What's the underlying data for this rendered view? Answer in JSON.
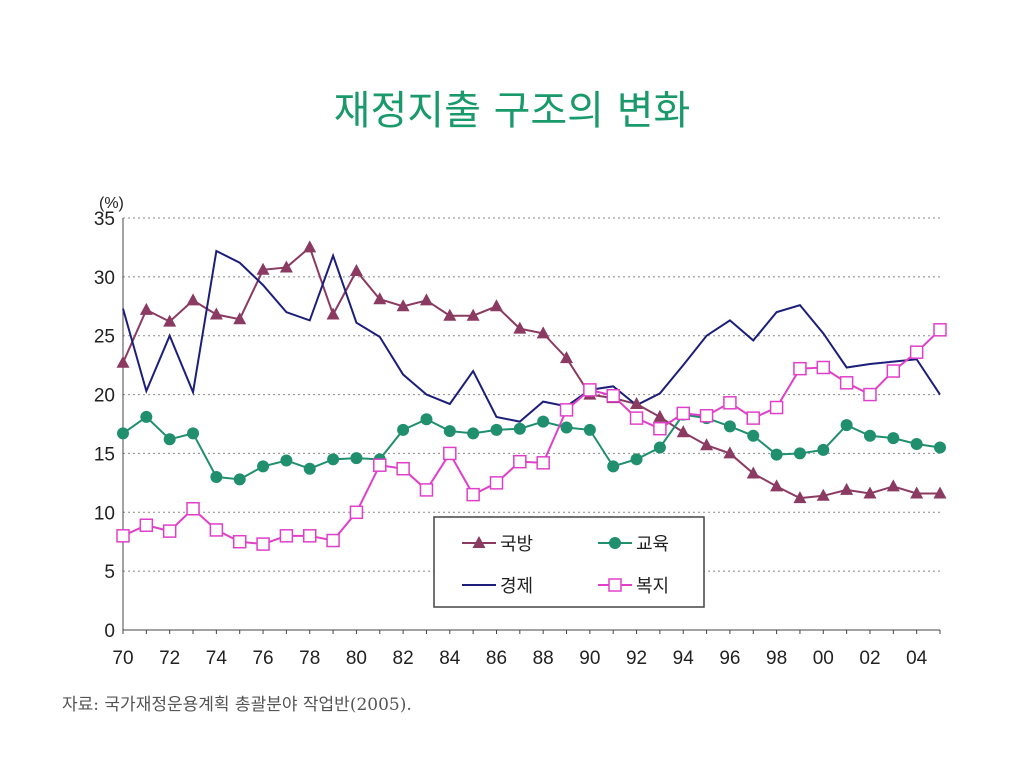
{
  "slide_title": "재정지출 구조의 변화",
  "source_note": "자료: 국가재정운용계획 총괄분야 작업반(2005).",
  "chart_data": {
    "type": "line",
    "ylabel": "(%)",
    "ylim": [
      0,
      35
    ],
    "yticks": [
      "0",
      "5",
      "10",
      "15",
      "20",
      "25",
      "30",
      "35"
    ],
    "xlim": [
      70,
      105
    ],
    "xticks": [
      "70",
      "72",
      "74",
      "76",
      "78",
      "80",
      "82",
      "84",
      "86",
      "88",
      "90",
      "92",
      "94",
      "96",
      "98",
      "00",
      "02",
      "04"
    ],
    "grid": "horizontal dotted",
    "legend_position": "inside-bottom-center",
    "x": [
      70,
      71,
      72,
      73,
      74,
      75,
      76,
      77,
      78,
      79,
      80,
      81,
      82,
      83,
      84,
      85,
      86,
      87,
      88,
      89,
      90,
      91,
      92,
      93,
      94,
      95,
      96,
      97,
      98,
      99,
      100,
      101,
      102,
      103,
      104,
      105
    ],
    "series": [
      {
        "name": "국방",
        "color": "#8b3a62",
        "marker": "triangle",
        "values": [
          22.7,
          27.2,
          26.2,
          28.0,
          26.8,
          26.4,
          30.6,
          30.8,
          32.5,
          26.8,
          30.5,
          28.1,
          27.5,
          28.0,
          26.7,
          26.7,
          27.5,
          25.6,
          25.2,
          23.1,
          20.0,
          19.7,
          19.2,
          18.1,
          16.8,
          15.7,
          15.0,
          13.3,
          12.2,
          11.2,
          11.4,
          11.9,
          11.6,
          12.2,
          11.6,
          11.6
        ]
      },
      {
        "name": "교육",
        "color": "#1f8f6e",
        "marker": "circle",
        "values": [
          16.7,
          18.1,
          16.2,
          16.7,
          13.0,
          12.8,
          13.9,
          14.4,
          13.7,
          14.5,
          14.6,
          14.5,
          17.0,
          17.9,
          16.9,
          16.7,
          17.0,
          17.1,
          17.7,
          17.2,
          17.0,
          13.9,
          14.5,
          15.5,
          18.3,
          18.0,
          17.3,
          16.5,
          14.9,
          15.0,
          15.3,
          17.4,
          16.5,
          16.3,
          15.8,
          15.5
        ]
      },
      {
        "name": "경제",
        "color": "#1c1f7a",
        "marker": "none",
        "values": [
          27.3,
          20.3,
          25.0,
          20.2,
          32.2,
          31.2,
          29.3,
          27.0,
          26.3,
          31.8,
          26.1,
          24.9,
          21.7,
          20.0,
          19.2,
          22.0,
          18.1,
          17.7,
          19.4,
          19.0,
          20.4,
          20.7,
          19.1,
          20.1,
          22.5,
          25.0,
          26.3,
          24.6,
          27.0,
          27.6,
          25.2,
          22.3,
          22.6,
          22.8,
          23.0,
          20.0
        ]
      },
      {
        "name": "복지",
        "color": "#e040c8",
        "marker": "square-open",
        "values": [
          8.0,
          8.9,
          8.4,
          10.3,
          8.5,
          7.5,
          7.3,
          8.0,
          8.0,
          7.6,
          10.0,
          14.0,
          13.7,
          11.9,
          15.0,
          11.5,
          12.5,
          14.3,
          14.2,
          18.7,
          20.4,
          19.9,
          18.0,
          17.1,
          18.4,
          18.2,
          19.3,
          18.0,
          18.9,
          22.2,
          22.3,
          21.0,
          20.0,
          22.0,
          23.6,
          25.5
        ]
      }
    ]
  }
}
